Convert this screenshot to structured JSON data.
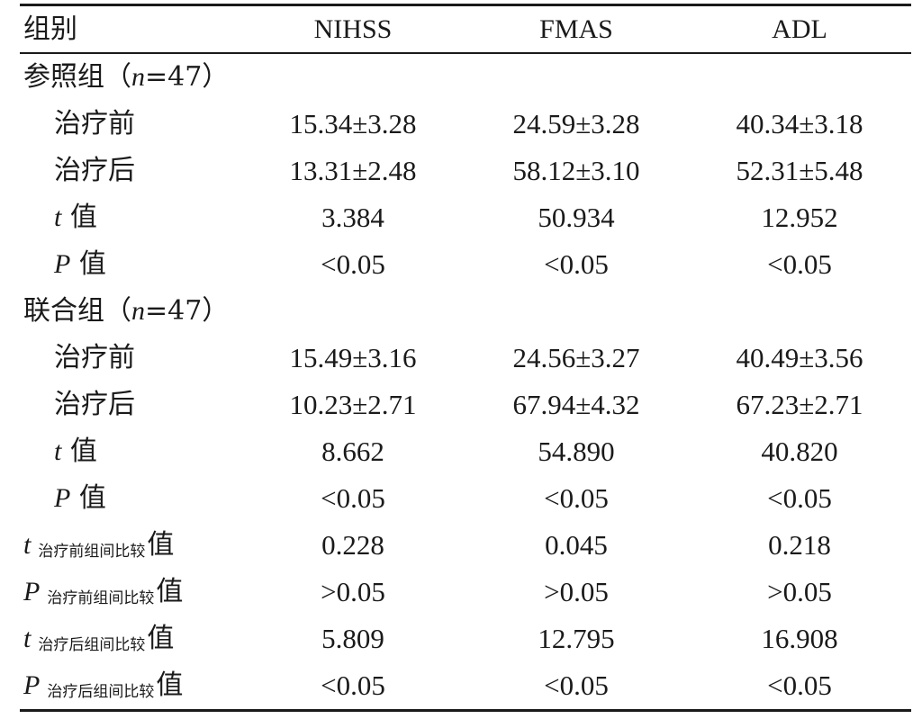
{
  "header": {
    "group": "组别",
    "col1": "NIHSS",
    "col2": "FMAS",
    "col3": "ADL"
  },
  "groups": [
    {
      "title_prefix": "参照组（",
      "title_n": "n",
      "title_suffix": "=47）",
      "rows": [
        {
          "label": "治疗前",
          "v": [
            "15.34±3.28",
            "24.59±3.28",
            "40.34±3.18"
          ]
        },
        {
          "label": "治疗后",
          "v": [
            "13.31±2.48",
            "58.12±3.10",
            "52.31±5.48"
          ]
        },
        {
          "label_italic": "t",
          "label": "值",
          "v": [
            "3.384",
            "50.934",
            "12.952"
          ]
        },
        {
          "label_italic": "P",
          "label": "值",
          "v": [
            "<0.05",
            "<0.05",
            "<0.05"
          ]
        }
      ]
    },
    {
      "title_prefix": "联合组（",
      "title_n": "n",
      "title_suffix": "=47）",
      "rows": [
        {
          "label": "治疗前",
          "v": [
            "15.49±3.16",
            "24.56±3.27",
            "40.49±3.56"
          ]
        },
        {
          "label": "治疗后",
          "v": [
            "10.23±2.71",
            "67.94±4.32",
            "67.23±2.71"
          ]
        },
        {
          "label_italic": "t",
          "label": "值",
          "v": [
            "8.662",
            "54.890",
            "40.820"
          ]
        },
        {
          "label_italic": "P",
          "label": "值",
          "v": [
            "<0.05",
            "<0.05",
            "<0.05"
          ]
        }
      ]
    }
  ],
  "comparisons": [
    {
      "stat": "t",
      "sub": "治疗前组间比较",
      "tail": "值",
      "v": [
        "0.228",
        "0.045",
        "0.218"
      ]
    },
    {
      "stat": "P",
      "sub": "治疗前组间比较",
      "tail": "值",
      "v": [
        ">0.05",
        ">0.05",
        ">0.05"
      ]
    },
    {
      "stat": "t",
      "sub": "治疗后组间比较",
      "tail": "值",
      "v": [
        "5.809",
        "12.795",
        "16.908"
      ]
    },
    {
      "stat": "P",
      "sub": "治疗后组间比较",
      "tail": "值",
      "v": [
        "<0.05",
        "<0.05",
        "<0.05"
      ]
    }
  ]
}
